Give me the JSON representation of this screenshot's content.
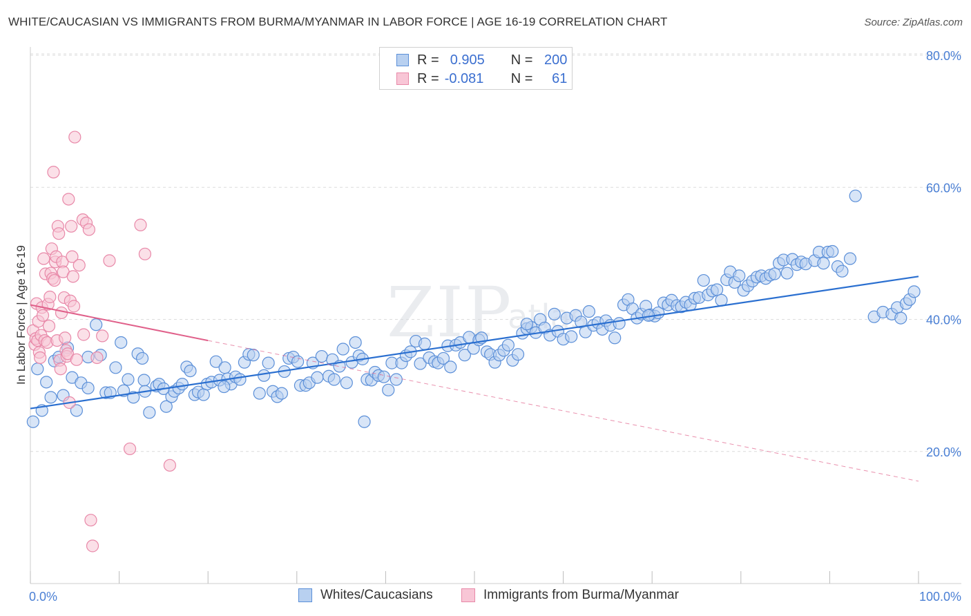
{
  "title": "WHITE/CAUCASIAN VS IMMIGRANTS FROM BURMA/MYANMAR IN LABOR FORCE | AGE 16-19 CORRELATION CHART",
  "source": "Source: ZipAtlas.com",
  "watermark": "ZIPatlas",
  "colors": {
    "blue_fill": "#b8d0f0",
    "blue_stroke": "#5b8fd8",
    "blue_line": "#2a6fd0",
    "pink_fill": "#f8c6d6",
    "pink_stroke": "#e888a8",
    "pink_line": "#e0608a",
    "axis_label": "#4a7fd4"
  },
  "legend": {
    "rows": [
      {
        "r_label": "R =",
        "r_value": "0.905",
        "n_label": "N =",
        "n_value": "200"
      },
      {
        "r_label": "R =",
        "r_value": "-0.081",
        "n_label": "N =",
        "n_value": "61"
      }
    ]
  },
  "chart_data": {
    "type": "scatter",
    "title": "WHITE/CAUCASIAN VS IMMIGRANTS FROM BURMA/MYANMAR IN LABOR FORCE | AGE 16-19 CORRELATION CHART",
    "xlabel": "",
    "ylabel": "In Labor Force | Age 16-19",
    "xlim": [
      0,
      100
    ],
    "ylim": [
      0,
      80
    ],
    "x_tick_labels": [
      "0.0%",
      "100.0%"
    ],
    "y_ticks": [
      20,
      40,
      60,
      80
    ],
    "y_tick_labels": [
      "20.0%",
      "40.0%",
      "60.0%",
      "80.0%"
    ],
    "grid": true,
    "legend_position": "top-center",
    "series": [
      {
        "name": "Whites/Caucasians",
        "r": 0.905,
        "n": 200,
        "trend": {
          "x": [
            0,
            100
          ],
          "y": [
            26.5,
            46.5
          ],
          "style": "solid"
        },
        "points": [
          [
            0.3,
            24.5
          ],
          [
            0.8,
            32.5
          ],
          [
            1.3,
            26.2
          ],
          [
            1.8,
            30.5
          ],
          [
            2.3,
            28.2
          ],
          [
            2.7,
            33.7
          ],
          [
            3.2,
            34.3
          ],
          [
            3.7,
            28.5
          ],
          [
            4.2,
            35.7
          ],
          [
            4.7,
            31.2
          ],
          [
            5.2,
            26.2
          ],
          [
            5.7,
            30.4
          ],
          [
            6.5,
            29.6
          ],
          [
            6.5,
            34.3
          ],
          [
            7.4,
            39.2
          ],
          [
            7.9,
            34.6
          ],
          [
            8.5,
            28.9
          ],
          [
            9.0,
            28.9
          ],
          [
            9.6,
            32.7
          ],
          [
            10.2,
            36.5
          ],
          [
            10.5,
            29.2
          ],
          [
            11.0,
            30.9
          ],
          [
            11.6,
            28.2
          ],
          [
            12.1,
            34.8
          ],
          [
            12.6,
            34.1
          ],
          [
            12.8,
            30.8
          ],
          [
            13.4,
            25.9
          ],
          [
            14.2,
            29.9
          ],
          [
            14.5,
            30.2
          ],
          [
            15.0,
            29.5
          ],
          [
            15.3,
            26.8
          ],
          [
            15.9,
            28.3
          ],
          [
            16.2,
            29.1
          ],
          [
            16.7,
            29.6
          ],
          [
            17.1,
            30.2
          ],
          [
            17.6,
            32.8
          ],
          [
            18.0,
            32.2
          ],
          [
            18.5,
            28.6
          ],
          [
            18.9,
            29.0
          ],
          [
            19.5,
            28.6
          ],
          [
            19.9,
            30.2
          ],
          [
            20.4,
            30.5
          ],
          [
            20.9,
            33.6
          ],
          [
            21.3,
            30.8
          ],
          [
            21.9,
            32.7
          ],
          [
            22.2,
            31.0
          ],
          [
            22.6,
            30.2
          ],
          [
            23.1,
            31.3
          ],
          [
            23.6,
            30.9
          ],
          [
            24.1,
            33.5
          ],
          [
            24.6,
            34.7
          ],
          [
            25.1,
            34.6
          ],
          [
            25.8,
            28.8
          ],
          [
            26.3,
            31.5
          ],
          [
            26.8,
            33.4
          ],
          [
            27.3,
            29.1
          ],
          [
            27.8,
            28.3
          ],
          [
            28.3,
            28.8
          ],
          [
            28.6,
            32.1
          ],
          [
            29.1,
            34.1
          ],
          [
            29.6,
            34.3
          ],
          [
            30.1,
            33.6
          ],
          [
            30.4,
            30.0
          ],
          [
            31.0,
            30.0
          ],
          [
            31.4,
            30.4
          ],
          [
            31.8,
            33.4
          ],
          [
            32.3,
            31.2
          ],
          [
            32.8,
            34.4
          ],
          [
            33.6,
            31.4
          ],
          [
            34.0,
            33.9
          ],
          [
            34.2,
            30.9
          ],
          [
            34.8,
            32.9
          ],
          [
            35.2,
            35.5
          ],
          [
            35.6,
            30.4
          ],
          [
            36.2,
            33.5
          ],
          [
            36.6,
            36.5
          ],
          [
            37.0,
            34.5
          ],
          [
            37.4,
            34.0
          ],
          [
            37.9,
            30.9
          ],
          [
            38.4,
            30.8
          ],
          [
            38.8,
            32.0
          ],
          [
            39.2,
            31.5
          ],
          [
            39.8,
            31.3
          ],
          [
            40.3,
            29.3
          ],
          [
            40.7,
            33.4
          ],
          [
            41.2,
            30.9
          ],
          [
            41.8,
            33.4
          ],
          [
            42.3,
            34.5
          ],
          [
            42.8,
            35.1
          ],
          [
            43.4,
            36.7
          ],
          [
            43.9,
            33.3
          ],
          [
            44.4,
            36.3
          ],
          [
            44.9,
            34.2
          ],
          [
            45.5,
            33.6
          ],
          [
            45.9,
            33.4
          ],
          [
            46.5,
            34.1
          ],
          [
            47.0,
            36.0
          ],
          [
            47.3,
            32.8
          ],
          [
            47.9,
            36.1
          ],
          [
            48.4,
            36.5
          ],
          [
            48.9,
            34.6
          ],
          [
            49.4,
            37.3
          ],
          [
            49.9,
            35.6
          ],
          [
            50.5,
            36.9
          ],
          [
            50.8,
            37.2
          ],
          [
            51.4,
            35.1
          ],
          [
            51.8,
            34.7
          ],
          [
            52.3,
            33.5
          ],
          [
            52.8,
            34.6
          ],
          [
            53.3,
            35.3
          ],
          [
            53.8,
            36.1
          ],
          [
            54.3,
            33.8
          ],
          [
            54.9,
            34.7
          ],
          [
            55.4,
            37.9
          ],
          [
            55.9,
            38.6
          ],
          [
            56.4,
            38.8
          ],
          [
            56.9,
            38.0
          ],
          [
            57.4,
            40.0
          ],
          [
            57.9,
            38.7
          ],
          [
            58.5,
            37.6
          ],
          [
            59.0,
            40.8
          ],
          [
            59.4,
            38.2
          ],
          [
            60.0,
            37.0
          ],
          [
            60.4,
            40.2
          ],
          [
            60.9,
            37.4
          ],
          [
            61.4,
            40.6
          ],
          [
            62.0,
            39.6
          ],
          [
            62.5,
            38.1
          ],
          [
            62.9,
            41.2
          ],
          [
            63.4,
            39.1
          ],
          [
            63.9,
            39.5
          ],
          [
            64.4,
            38.5
          ],
          [
            64.8,
            39.8
          ],
          [
            65.3,
            39.1
          ],
          [
            65.8,
            37.2
          ],
          [
            66.3,
            39.4
          ],
          [
            66.8,
            42.2
          ],
          [
            67.3,
            43.0
          ],
          [
            67.8,
            41.6
          ],
          [
            68.3,
            40.2
          ],
          [
            68.8,
            40.8
          ],
          [
            69.3,
            42.0
          ],
          [
            69.8,
            40.7
          ],
          [
            70.3,
            40.5
          ],
          [
            70.7,
            41.0
          ],
          [
            71.3,
            42.5
          ],
          [
            71.8,
            42.2
          ],
          [
            72.2,
            42.9
          ],
          [
            72.8,
            42.1
          ],
          [
            73.3,
            41.9
          ],
          [
            73.8,
            42.6
          ],
          [
            74.3,
            42.2
          ],
          [
            74.8,
            43.2
          ],
          [
            75.3,
            43.3
          ],
          [
            75.8,
            45.9
          ],
          [
            76.3,
            43.7
          ],
          [
            76.8,
            44.3
          ],
          [
            77.3,
            44.5
          ],
          [
            77.8,
            42.9
          ],
          [
            78.4,
            46.0
          ],
          [
            78.8,
            47.2
          ],
          [
            79.3,
            45.6
          ],
          [
            79.8,
            46.6
          ],
          [
            80.3,
            44.4
          ],
          [
            80.8,
            45.1
          ],
          [
            81.3,
            45.8
          ],
          [
            81.8,
            46.4
          ],
          [
            82.3,
            46.6
          ],
          [
            82.8,
            46.2
          ],
          [
            83.3,
            46.7
          ],
          [
            83.8,
            46.9
          ],
          [
            84.3,
            48.5
          ],
          [
            84.8,
            49.0
          ],
          [
            85.2,
            47.0
          ],
          [
            85.8,
            49.1
          ],
          [
            86.3,
            48.3
          ],
          [
            86.8,
            48.7
          ],
          [
            87.3,
            48.4
          ],
          [
            88.3,
            48.9
          ],
          [
            88.8,
            50.2
          ],
          [
            89.3,
            48.5
          ],
          [
            89.8,
            50.2
          ],
          [
            90.3,
            50.3
          ],
          [
            90.9,
            48.0
          ],
          [
            91.4,
            47.3
          ],
          [
            92.3,
            49.2
          ],
          [
            92.9,
            58.7
          ],
          [
            95.0,
            40.4
          ],
          [
            96.0,
            41.1
          ],
          [
            97.0,
            40.8
          ],
          [
            97.6,
            41.8
          ],
          [
            98.0,
            40.2
          ],
          [
            98.6,
            42.4
          ],
          [
            99.0,
            43.0
          ],
          [
            99.5,
            44.2
          ],
          [
            37.6,
            24.5
          ],
          [
            21.8,
            29.8
          ],
          [
            12.9,
            29.1
          ],
          [
            55.9,
            39.3
          ],
          [
            69.6,
            40.6
          ]
        ]
      },
      {
        "name": "Immigrants from Burma/Myanmar",
        "r": -0.081,
        "n": 61,
        "trend": {
          "x": [
            0,
            20
          ],
          "y": [
            42.2,
            36.8
          ],
          "style": "solid",
          "extension": {
            "x": [
              20,
              100
            ],
            "y": [
              36.8,
              15.5
            ],
            "style": "dashed"
          }
        },
        "points": [
          [
            0.3,
            38.3
          ],
          [
            0.5,
            36.2
          ],
          [
            0.6,
            37.1
          ],
          [
            0.7,
            42.4
          ],
          [
            0.8,
            36.8
          ],
          [
            0.9,
            39.7
          ],
          [
            1.0,
            35.0
          ],
          [
            1.1,
            34.2
          ],
          [
            1.2,
            37.6
          ],
          [
            1.3,
            41.8
          ],
          [
            1.4,
            40.6
          ],
          [
            1.5,
            49.2
          ],
          [
            1.6,
            36.8
          ],
          [
            1.7,
            46.9
          ],
          [
            1.9,
            36.5
          ],
          [
            2.0,
            42.3
          ],
          [
            2.1,
            39.0
          ],
          [
            2.2,
            43.4
          ],
          [
            2.3,
            47.0
          ],
          [
            2.4,
            50.7
          ],
          [
            2.5,
            46.2
          ],
          [
            2.6,
            62.3
          ],
          [
            2.7,
            45.9
          ],
          [
            2.8,
            48.7
          ],
          [
            2.9,
            49.5
          ],
          [
            3.0,
            36.8
          ],
          [
            3.1,
            54.1
          ],
          [
            3.2,
            53.0
          ],
          [
            3.3,
            33.8
          ],
          [
            3.4,
            32.5
          ],
          [
            3.5,
            41.0
          ],
          [
            3.6,
            48.7
          ],
          [
            3.7,
            47.2
          ],
          [
            3.8,
            43.3
          ],
          [
            3.9,
            37.2
          ],
          [
            4.0,
            35.3
          ],
          [
            4.1,
            34.4
          ],
          [
            4.2,
            34.8
          ],
          [
            4.3,
            58.2
          ],
          [
            4.4,
            27.4
          ],
          [
            4.5,
            42.8
          ],
          [
            4.6,
            54.1
          ],
          [
            4.7,
            49.5
          ],
          [
            4.8,
            46.5
          ],
          [
            4.9,
            42.0
          ],
          [
            5.0,
            67.6
          ],
          [
            5.2,
            33.9
          ],
          [
            5.5,
            48.2
          ],
          [
            5.9,
            55.1
          ],
          [
            6.3,
            54.6
          ],
          [
            6.6,
            53.6
          ],
          [
            7.5,
            34.2
          ],
          [
            8.1,
            37.5
          ],
          [
            8.9,
            48.9
          ],
          [
            11.2,
            20.4
          ],
          [
            12.4,
            54.3
          ],
          [
            12.9,
            49.9
          ],
          [
            15.7,
            17.9
          ],
          [
            6.8,
            9.6
          ],
          [
            7.0,
            5.7
          ],
          [
            6.0,
            37.7
          ]
        ]
      }
    ]
  },
  "bottom_legend": [
    "Whites/Caucasians",
    "Immigrants from Burma/Myanmar"
  ]
}
